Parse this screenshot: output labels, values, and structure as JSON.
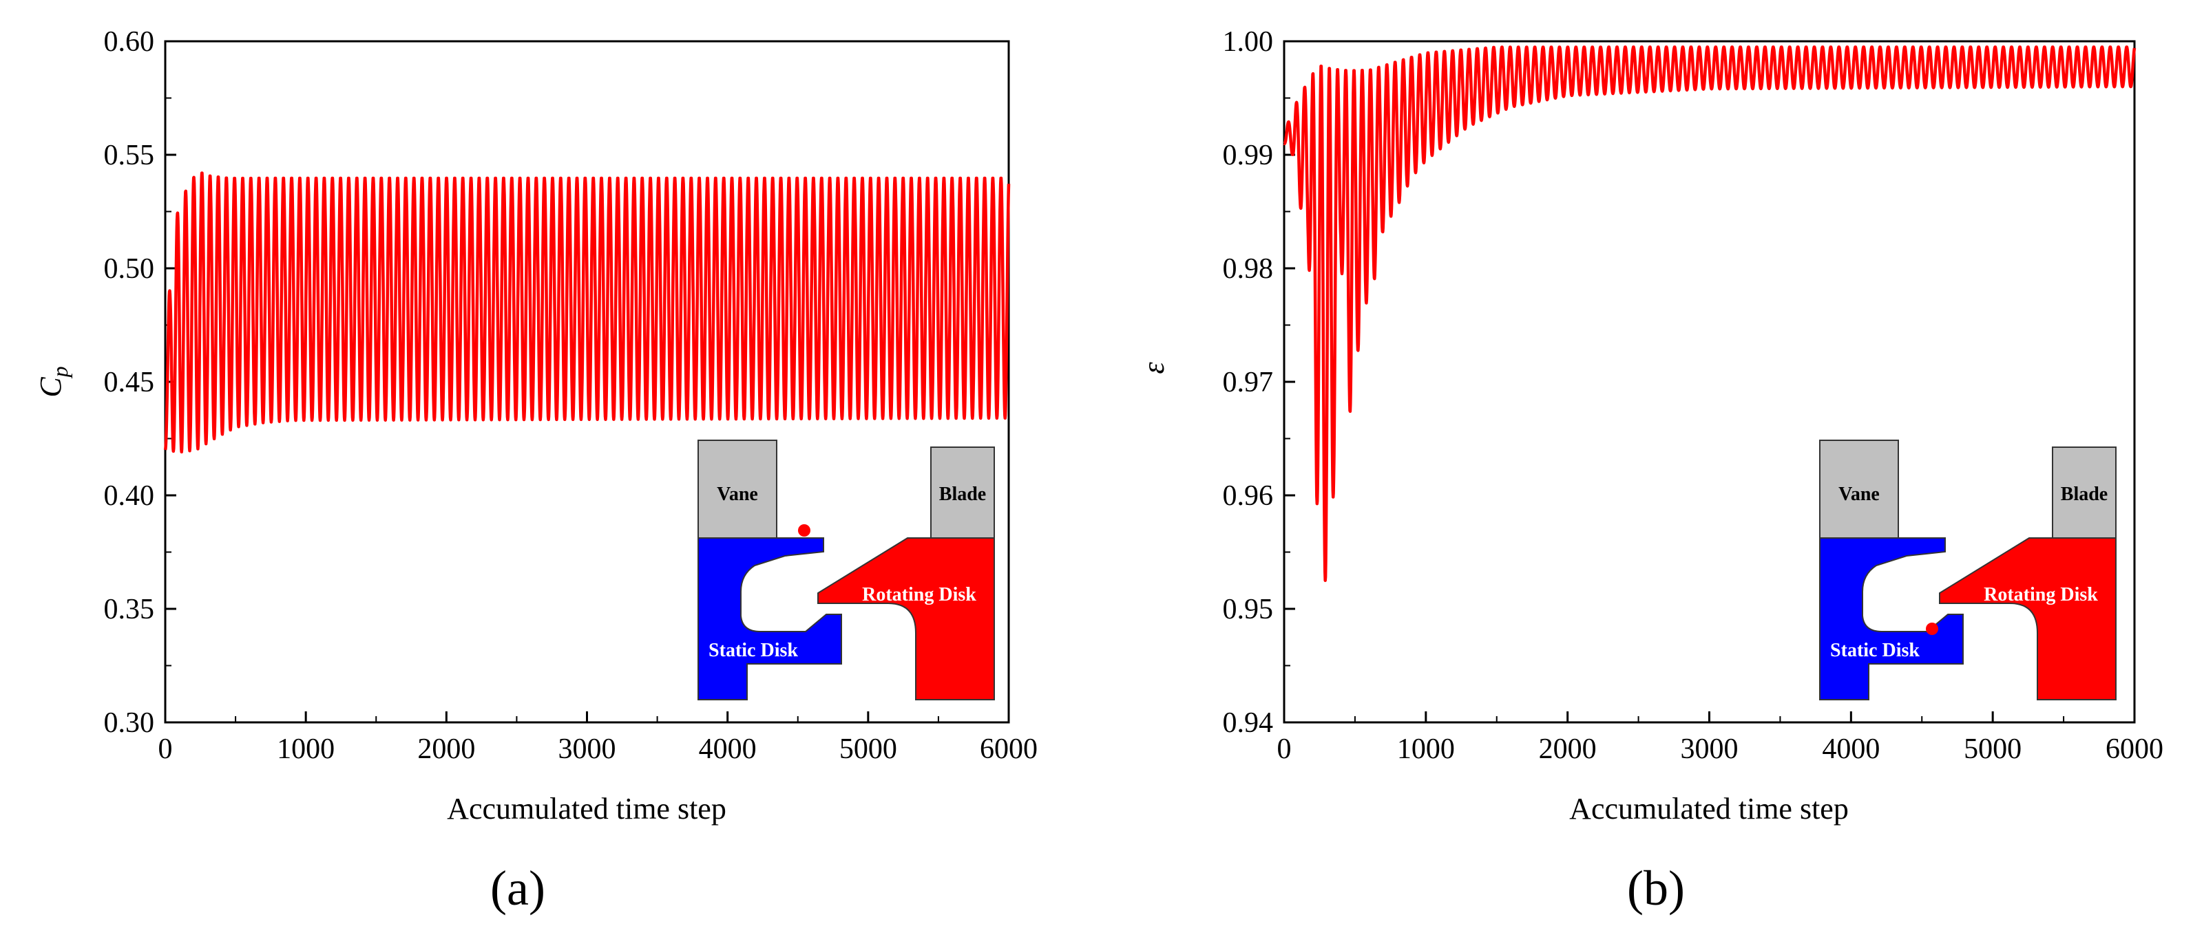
{
  "colors": {
    "series": "#ff0000",
    "vane_blade": "#c0c0c0",
    "static_disk": "#0000ff",
    "rotating_disk": "#ff0000",
    "marker": "#ff0000"
  },
  "chart_data": [
    {
      "type": "line",
      "panel": "(a)",
      "xlabel": "Accumulated time step",
      "ylabel": "C",
      "ylabel_sub": "p",
      "xlim": [
        0,
        6000
      ],
      "ylim": [
        0.3,
        0.6
      ],
      "xticks": [
        0,
        1000,
        2000,
        3000,
        4000,
        5000,
        6000
      ],
      "yticks": [
        "0.30",
        "0.35",
        "0.40",
        "0.45",
        "0.50",
        "0.55",
        "0.60"
      ],
      "grid": false,
      "series": [
        {
          "description_source": "oscillating response",
          "oscillation_period": 58,
          "initial_value": 0.46,
          "envelope_max": [
            [
              0,
              0.46
            ],
            [
              60,
              0.52
            ],
            [
              150,
              0.535
            ],
            [
              230,
              0.543
            ],
            [
              320,
              0.541
            ],
            [
              450,
              0.54
            ],
            [
              600,
              0.54
            ],
            [
              6000,
              0.54
            ]
          ],
          "envelope_min": [
            [
              0,
              0.42
            ],
            [
              100,
              0.419
            ],
            [
              220,
              0.42
            ],
            [
              350,
              0.425
            ],
            [
              500,
              0.43
            ],
            [
              700,
              0.432
            ],
            [
              900,
              0.433
            ],
            [
              6000,
              0.434
            ]
          ]
        }
      ],
      "inset": {
        "labels": {
          "vane": "Vane",
          "blade": "Blade",
          "rotating_disk": "Rotating Disk",
          "static_disk": "Static Disk"
        },
        "monitor_point": "upper"
      }
    },
    {
      "type": "line",
      "panel": "(b)",
      "xlabel": "Accumulated time step",
      "ylabel": "ε",
      "xlim": [
        0,
        6000
      ],
      "ylim": [
        0.94,
        1.0
      ],
      "xticks": [
        0,
        1000,
        2000,
        3000,
        4000,
        5000,
        6000
      ],
      "yticks": [
        "0.94",
        "0.95",
        "0.96",
        "0.97",
        "0.98",
        "0.99",
        "1.00"
      ],
      "grid": false,
      "series": [
        {
          "description_source": "oscillating response",
          "oscillation_period": 58,
          "initial_value": 0.991,
          "envelope_max": [
            [
              0,
              0.992
            ],
            [
              100,
              0.995
            ],
            [
              240,
              0.998
            ],
            [
              400,
              0.9975
            ],
            [
              600,
              0.9975
            ],
            [
              1000,
              0.999
            ],
            [
              1500,
              0.9995
            ],
            [
              6000,
              0.9995
            ]
          ],
          "envelope_min": [
            [
              0,
              0.991
            ],
            [
              60,
              0.99
            ],
            [
              120,
              0.985
            ],
            [
              170,
              0.982
            ],
            [
              230,
              0.9595
            ],
            [
              320,
              0.949
            ],
            [
              400,
              0.981
            ],
            [
              470,
              0.9662
            ],
            [
              550,
              0.9763
            ],
            [
              620,
              0.9778
            ],
            [
              700,
              0.9835
            ],
            [
              800,
              0.9855
            ],
            [
              900,
              0.988
            ],
            [
              1000,
              0.9895
            ],
            [
              1300,
              0.9925
            ],
            [
              1600,
              0.9942
            ],
            [
              2000,
              0.9952
            ],
            [
              3000,
              0.9958
            ],
            [
              6000,
              0.996
            ]
          ]
        }
      ],
      "inset": {
        "labels": {
          "vane": "Vane",
          "blade": "Blade",
          "rotating_disk": "Rotating Disk",
          "static_disk": "Static Disk"
        },
        "monitor_point": "lower"
      }
    }
  ]
}
